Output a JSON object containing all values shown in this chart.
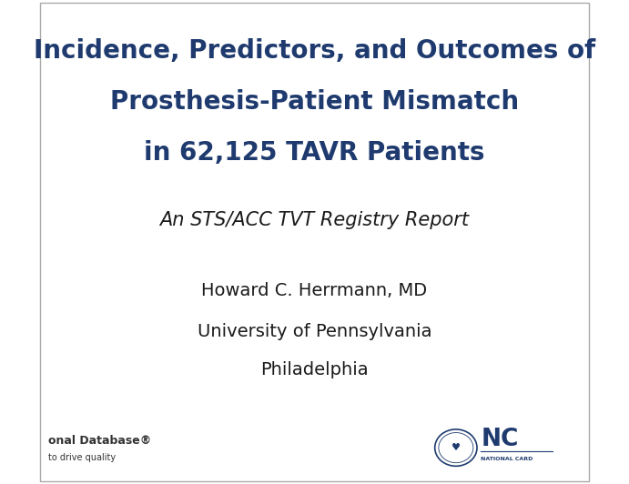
{
  "background_color": "#ffffff",
  "title_line1": "Incidence, Predictors, and Outcomes of",
  "title_line2": "Prosthesis-Patient Mismatch",
  "title_line3": "in 62,125 TAVR Patients",
  "title_color": "#1e3a6e",
  "title_fontsize": 20,
  "subtitle": "An STS/ACC TVT Registry Report",
  "subtitle_color": "#1a1a1a",
  "subtitle_fontsize": 15,
  "author_line1": "Howard C. Herrmann, MD",
  "author_line2": "University of Pennsylvania",
  "author_line3": "Philadelphia",
  "author_color": "#1a1a1a",
  "author_fontsize": 14,
  "footer_left_line1": "onal Database®",
  "footer_left_line2": "to drive quality",
  "footer_color": "#333333",
  "footer_fontsize": 7,
  "nc_text": "NC",
  "nc_subtext": "NATIONAL CARD",
  "nc_color": "#1e3a6e"
}
